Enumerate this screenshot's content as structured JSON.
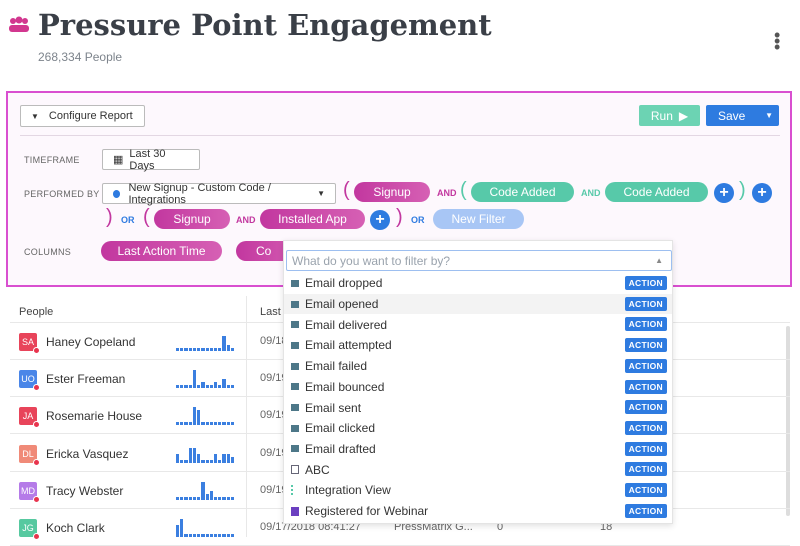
{
  "header": {
    "title": "Pressure Point Engagement",
    "subtitle": "268,334 People",
    "menu_icon": "⋮"
  },
  "report": {
    "configure_label": "Configure Report",
    "run_label": "Run",
    "save_label": "Save",
    "timeframe_label": "TIMEFRAME",
    "timeframe_value": "Last 30 Days",
    "performed_by_label": "PERFORMED BY",
    "segment": "New Signup - Custom Code / Integrations",
    "and": "AND",
    "or": "OR",
    "filters": {
      "g1": [
        "Signup",
        "Code Added",
        "Code Added"
      ],
      "g2": [
        "Signup",
        "Installed App"
      ],
      "new_filter": "New Filter"
    },
    "columns_label": "COLUMNS",
    "columns": [
      "Last Action Time",
      "Co"
    ]
  },
  "table": {
    "headers": [
      "People",
      "Last A"
    ],
    "rows": [
      {
        "initials": "SA",
        "name": "Haney Copeland",
        "color": "#e8445a",
        "date": "09/18",
        "spark": [
          1,
          1,
          1,
          1,
          1,
          1,
          1,
          1,
          1,
          1,
          1,
          5,
          2,
          1
        ]
      },
      {
        "initials": "UO",
        "name": "Ester Freeman",
        "color": "#4a86e8",
        "date": "09/19",
        "spark": [
          1,
          1,
          1,
          1,
          6,
          1,
          2,
          1,
          1,
          2,
          1,
          3,
          1,
          1
        ]
      },
      {
        "initials": "JA",
        "name": "Rosemarie House",
        "color": "#e8445a",
        "date": "09/19",
        "spark": [
          1,
          1,
          1,
          1,
          6,
          5,
          1,
          1,
          1,
          1,
          1,
          1,
          1,
          1
        ]
      },
      {
        "initials": "DL",
        "name": "Ericka Vasquez",
        "color": "#f08a78",
        "date": "09/19",
        "spark": [
          3,
          1,
          1,
          5,
          5,
          3,
          1,
          1,
          1,
          3,
          1,
          3,
          3,
          2
        ]
      },
      {
        "initials": "MD",
        "name": "Tracy Webster",
        "color": "#b57be8",
        "date": "09/19",
        "spark": [
          1,
          1,
          1,
          1,
          1,
          1,
          6,
          2,
          3,
          1,
          1,
          1,
          1,
          1
        ]
      },
      {
        "initials": "JG",
        "name": "Koch Clark",
        "color": "#57c9a0",
        "date": "09/17/2018 08:41:27",
        "source": "PressMatrix G...",
        "c1": "0",
        "c2": "18",
        "spark": [
          4,
          6,
          1,
          1,
          1,
          1,
          1,
          1,
          1,
          1,
          1,
          1,
          1,
          1
        ]
      }
    ]
  },
  "dropdown": {
    "placeholder": "What do you want to filter by?",
    "badge": "ACTION",
    "items": [
      "Email dropped",
      "Email opened",
      "Email delivered",
      "Email attempted",
      "Email failed",
      "Email bounced",
      "Email sent",
      "Email clicked",
      "Email drafted",
      "ABC",
      "Integration View",
      "Registered for Webinar"
    ]
  }
}
